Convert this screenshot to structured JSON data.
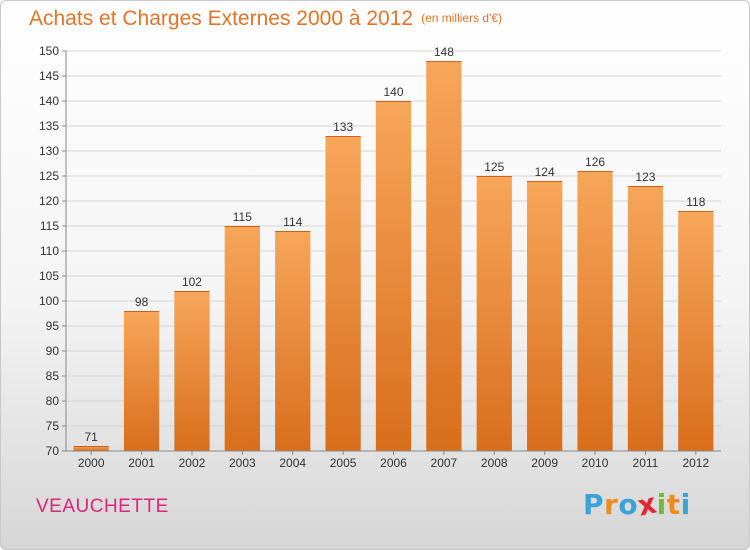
{
  "header": {
    "title": "Achats et Charges Externes 2000 à 2012",
    "unit": "(en milliers d'€)"
  },
  "subject": "VEAUCHETTE",
  "brand": {
    "letters": [
      "P",
      "r",
      "o",
      "x",
      "i",
      "t",
      "i"
    ],
    "colors": [
      "#3aa3d8",
      "#f08a1c",
      "#3aa3d8",
      "#e3262d",
      "#74b83a",
      "#f08a1c",
      "#3aa3d8"
    ]
  },
  "colors": {
    "bar_light": "#f7a65a",
    "bar_dark": "#d86e1c",
    "title": "#e0742a",
    "subject": "#d8287b"
  },
  "chart_data": {
    "type": "bar",
    "title": "Achats et Charges Externes 2000 à 2012",
    "subtitle": "(en milliers d'€)",
    "categories": [
      "2000",
      "2001",
      "2002",
      "2003",
      "2004",
      "2005",
      "2006",
      "2007",
      "2008",
      "2009",
      "2010",
      "2011",
      "2012"
    ],
    "values": [
      71,
      98,
      102,
      115,
      114,
      133,
      140,
      148,
      125,
      124,
      126,
      123,
      118
    ],
    "ylim": [
      70,
      150
    ],
    "yticks": [
      70,
      75,
      80,
      85,
      90,
      95,
      100,
      105,
      110,
      115,
      120,
      125,
      130,
      135,
      140,
      145,
      150
    ],
    "grid": true,
    "data_labels": true
  }
}
